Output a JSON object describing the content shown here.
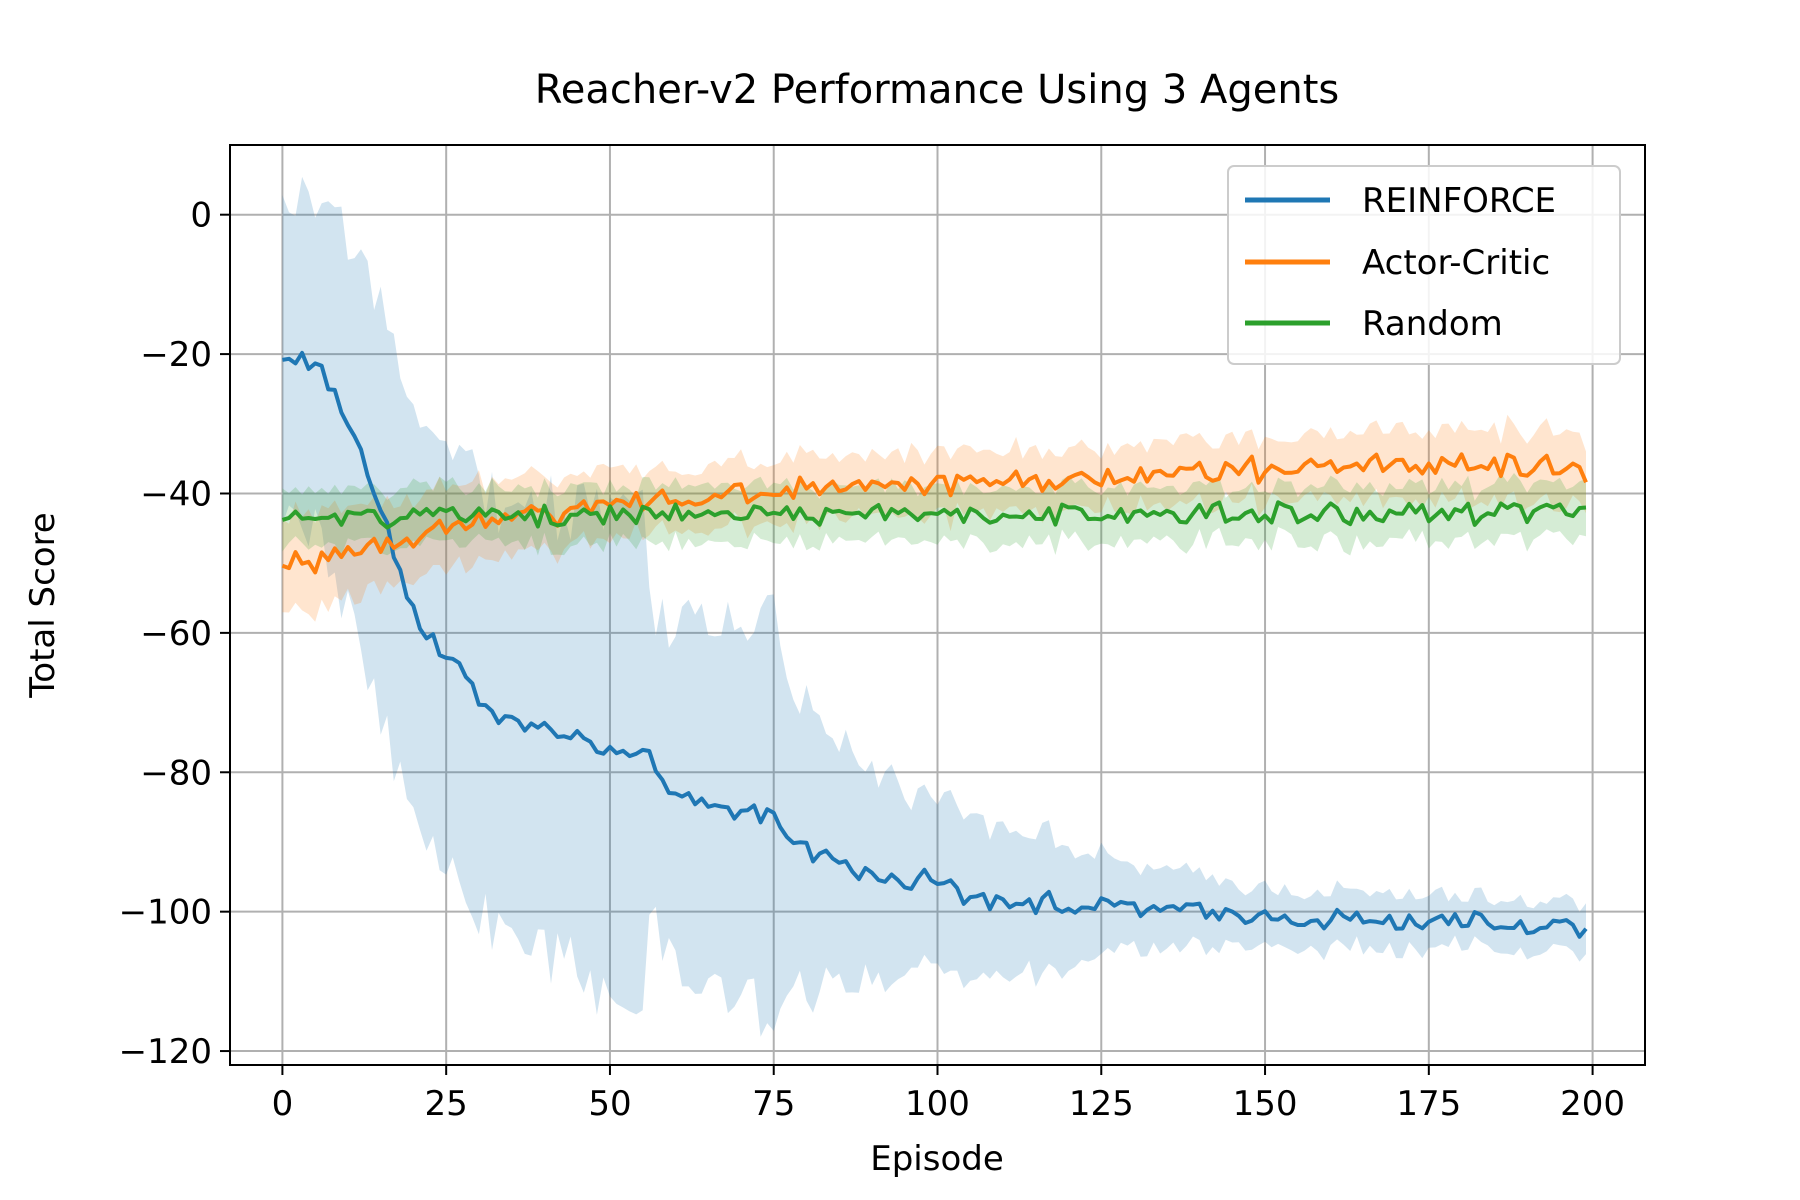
{
  "chart_data": {
    "type": "line",
    "title": "Reacher-v2 Performance Using 3 Agents",
    "xlabel": "Episode",
    "ylabel": "Total Score",
    "xlim": [
      -8,
      208
    ],
    "ylim": [
      -122,
      10
    ],
    "xticks": [
      0,
      25,
      50,
      75,
      100,
      125,
      150,
      175,
      200
    ],
    "yticks": [
      0,
      -20,
      -40,
      -60,
      -80,
      -100,
      -120
    ],
    "xtick_labels": [
      "0",
      "25",
      "50",
      "75",
      "100",
      "125",
      "150",
      "175",
      "200"
    ],
    "ytick_labels": [
      "0",
      "−20",
      "−40",
      "−60",
      "−80",
      "−100",
      "−120"
    ],
    "grid": true,
    "legend_position": "upper-right",
    "x_count": 200,
    "series": [
      {
        "name": "REINFORCE",
        "color": "#1f77b4",
        "mean_keypoints": [
          [
            0,
            -21
          ],
          [
            3,
            -20
          ],
          [
            7,
            -24
          ],
          [
            10,
            -30
          ],
          [
            12,
            -34
          ],
          [
            15,
            -42
          ],
          [
            18,
            -51
          ],
          [
            20,
            -56
          ],
          [
            22,
            -60
          ],
          [
            25,
            -63
          ],
          [
            28,
            -67
          ],
          [
            31,
            -70
          ],
          [
            35,
            -73
          ],
          [
            40,
            -74
          ],
          [
            45,
            -75
          ],
          [
            50,
            -77
          ],
          [
            55,
            -78
          ],
          [
            58,
            -80
          ],
          [
            60,
            -84
          ],
          [
            65,
            -85
          ],
          [
            70,
            -86
          ],
          [
            75,
            -86
          ],
          [
            80,
            -91
          ],
          [
            85,
            -93
          ],
          [
            90,
            -95
          ],
          [
            95,
            -95
          ],
          [
            100,
            -96
          ],
          [
            105,
            -98
          ],
          [
            110,
            -98
          ],
          [
            115,
            -98.5
          ],
          [
            120,
            -99
          ],
          [
            130,
            -99.5
          ],
          [
            140,
            -100
          ],
          [
            150,
            -100.5
          ],
          [
            160,
            -101
          ],
          [
            170,
            -101.5
          ],
          [
            180,
            -101.5
          ],
          [
            190,
            -102
          ],
          [
            199,
            -102
          ]
        ],
        "band_halfwidth_keypoints": [
          [
            0,
            22
          ],
          [
            5,
            24
          ],
          [
            10,
            27
          ],
          [
            15,
            28
          ],
          [
            20,
            28
          ],
          [
            25,
            30
          ],
          [
            30,
            32
          ],
          [
            35,
            31
          ],
          [
            40,
            32
          ],
          [
            45,
            33
          ],
          [
            50,
            35
          ],
          [
            55,
            33
          ],
          [
            57,
            22
          ],
          [
            60,
            25
          ],
          [
            65,
            26
          ],
          [
            70,
            28
          ],
          [
            75,
            28
          ],
          [
            80,
            20
          ],
          [
            85,
            17
          ],
          [
            90,
            15
          ],
          [
            95,
            13
          ],
          [
            100,
            13
          ],
          [
            105,
            12
          ],
          [
            110,
            11
          ],
          [
            115,
            10
          ],
          [
            120,
            8
          ],
          [
            125,
            7
          ],
          [
            130,
            6
          ],
          [
            140,
            5
          ],
          [
            150,
            4
          ],
          [
            160,
            4
          ],
          [
            170,
            4
          ],
          [
            180,
            3.5
          ],
          [
            199,
            3.5
          ]
        ],
        "noise_amplitude": 1.2
      },
      {
        "name": "Actor-Critic",
        "color": "#ff7f0e",
        "mean_keypoints": [
          [
            0,
            -51
          ],
          [
            10,
            -48
          ],
          [
            20,
            -46
          ],
          [
            30,
            -44
          ],
          [
            40,
            -43
          ],
          [
            50,
            -42
          ],
          [
            60,
            -41
          ],
          [
            70,
            -40
          ],
          [
            80,
            -39.5
          ],
          [
            90,
            -39
          ],
          [
            100,
            -39
          ],
          [
            110,
            -38.5
          ],
          [
            120,
            -38
          ],
          [
            130,
            -37.5
          ],
          [
            140,
            -37
          ],
          [
            150,
            -36.5
          ],
          [
            160,
            -36
          ],
          [
            170,
            -36
          ],
          [
            180,
            -35.5
          ],
          [
            190,
            -36
          ],
          [
            199,
            -37
          ]
        ],
        "band_halfwidth_keypoints": [
          [
            0,
            7
          ],
          [
            20,
            6
          ],
          [
            40,
            5
          ],
          [
            60,
            4.5
          ],
          [
            80,
            4.5
          ],
          [
            100,
            4.5
          ],
          [
            120,
            4.5
          ],
          [
            140,
            4.5
          ],
          [
            160,
            4.5
          ],
          [
            180,
            5
          ],
          [
            199,
            5
          ]
        ],
        "noise_amplitude": 1.4
      },
      {
        "name": "Random",
        "color": "#2ca02c",
        "mean_keypoints": [
          [
            0,
            -43.5
          ],
          [
            50,
            -43
          ],
          [
            100,
            -43
          ],
          [
            150,
            -43
          ],
          [
            199,
            -42.5
          ]
        ],
        "band_halfwidth_keypoints": [
          [
            0,
            4
          ],
          [
            199,
            4
          ]
        ],
        "noise_amplitude": 1.3
      }
    ]
  }
}
